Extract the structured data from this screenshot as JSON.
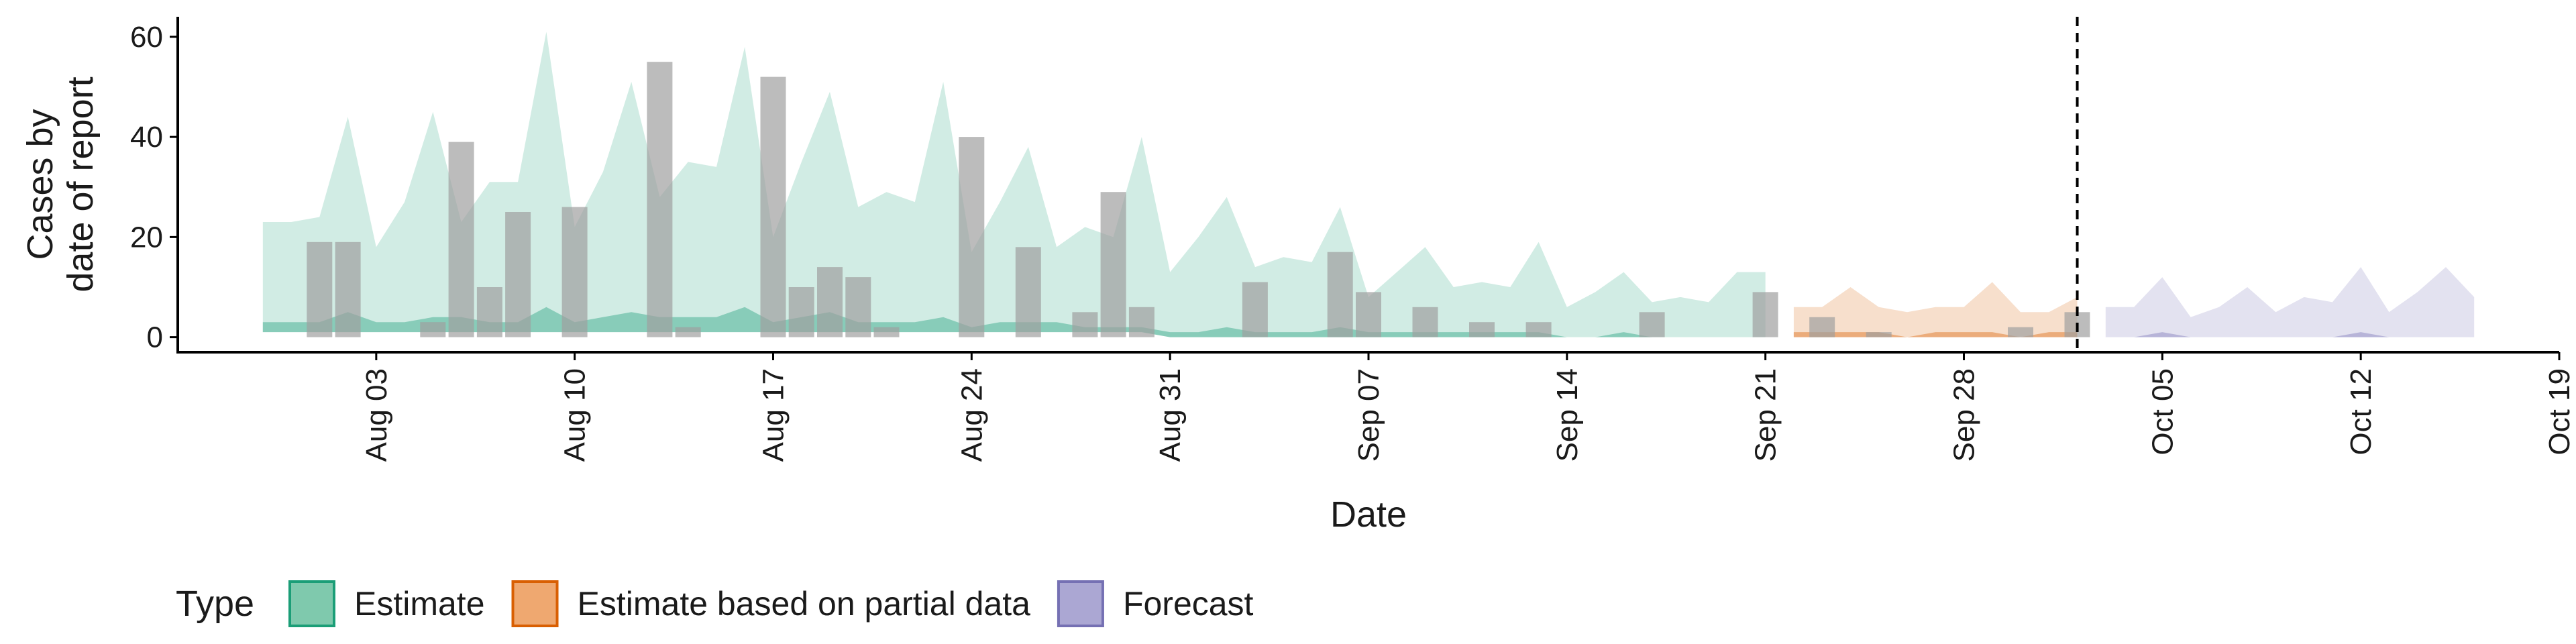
{
  "chart_data": {
    "type": "bar",
    "xlabel": "Date",
    "ylabel_lines": [
      "Cases by",
      "date of report"
    ],
    "yticks": [
      0,
      20,
      40,
      60
    ],
    "ylim": [
      -3,
      64
    ],
    "x_range": [
      "2024-07-27",
      "2024-10-19"
    ],
    "x_ticks": [
      {
        "date": "2024-08-03",
        "label": "Aug 03"
      },
      {
        "date": "2024-08-10",
        "label": "Aug 10"
      },
      {
        "date": "2024-08-17",
        "label": "Aug 17"
      },
      {
        "date": "2024-08-24",
        "label": "Aug 24"
      },
      {
        "date": "2024-08-31",
        "label": "Aug 31"
      },
      {
        "date": "2024-09-07",
        "label": "Sep 07"
      },
      {
        "date": "2024-09-14",
        "label": "Sep 14"
      },
      {
        "date": "2024-09-21",
        "label": "Sep 21"
      },
      {
        "date": "2024-09-28",
        "label": "Sep 28"
      },
      {
        "date": "2024-10-05",
        "label": "Oct 05"
      },
      {
        "date": "2024-10-12",
        "label": "Oct 12"
      },
      {
        "date": "2024-10-19",
        "label": "Oct 19"
      }
    ],
    "forecast_date": "2024-10-02",
    "legend": {
      "title": "Type",
      "entries": [
        {
          "label": "Estimate",
          "fill": "#7fc9ad",
          "stroke": "#1b9e77"
        },
        {
          "label": "Estimate based on partial data",
          "fill": "#efa870",
          "stroke": "#d95f02"
        },
        {
          "label": "Forecast",
          "fill": "#aba7d3",
          "stroke": "#7570b3"
        }
      ]
    },
    "colors": {
      "bar": "#a0a0a0",
      "estimate": "#1b9e77",
      "partial": "#d95f02",
      "forecast": "#7570b3"
    },
    "observed_bars": [
      {
        "date": "2024-08-01",
        "value": 19
      },
      {
        "date": "2024-08-02",
        "value": 19
      },
      {
        "date": "2024-08-05",
        "value": 3
      },
      {
        "date": "2024-08-06",
        "value": 39
      },
      {
        "date": "2024-08-07",
        "value": 10
      },
      {
        "date": "2024-08-08",
        "value": 25
      },
      {
        "date": "2024-08-10",
        "value": 26
      },
      {
        "date": "2024-08-13",
        "value": 55
      },
      {
        "date": "2024-08-14",
        "value": 2
      },
      {
        "date": "2024-08-17",
        "value": 52
      },
      {
        "date": "2024-08-18",
        "value": 10
      },
      {
        "date": "2024-08-19",
        "value": 14
      },
      {
        "date": "2024-08-20",
        "value": 12
      },
      {
        "date": "2024-08-21",
        "value": 2
      },
      {
        "date": "2024-08-24",
        "value": 40
      },
      {
        "date": "2024-08-26",
        "value": 18
      },
      {
        "date": "2024-08-28",
        "value": 5
      },
      {
        "date": "2024-08-29",
        "value": 29
      },
      {
        "date": "2024-08-30",
        "value": 6
      },
      {
        "date": "2024-09-03",
        "value": 11
      },
      {
        "date": "2024-09-06",
        "value": 17
      },
      {
        "date": "2024-09-07",
        "value": 9
      },
      {
        "date": "2024-09-09",
        "value": 6
      },
      {
        "date": "2024-09-11",
        "value": 3
      },
      {
        "date": "2024-09-13",
        "value": 3
      },
      {
        "date": "2024-09-17",
        "value": 5
      },
      {
        "date": "2024-09-21",
        "value": 9
      },
      {
        "date": "2024-09-23",
        "value": 4
      },
      {
        "date": "2024-09-25",
        "value": 1
      },
      {
        "date": "2024-09-30",
        "value": 2
      },
      {
        "date": "2024-10-02",
        "value": 5
      }
    ],
    "estimate_band": {
      "dates": [
        "2024-07-30",
        "2024-07-31",
        "2024-08-01",
        "2024-08-02",
        "2024-08-03",
        "2024-08-04",
        "2024-08-05",
        "2024-08-06",
        "2024-08-07",
        "2024-08-08",
        "2024-08-09",
        "2024-08-10",
        "2024-08-11",
        "2024-08-12",
        "2024-08-13",
        "2024-08-14",
        "2024-08-15",
        "2024-08-16",
        "2024-08-17",
        "2024-08-18",
        "2024-08-19",
        "2024-08-20",
        "2024-08-21",
        "2024-08-22",
        "2024-08-23",
        "2024-08-24",
        "2024-08-25",
        "2024-08-26",
        "2024-08-27",
        "2024-08-28",
        "2024-08-29",
        "2024-08-30",
        "2024-08-31",
        "2024-09-01",
        "2024-09-02",
        "2024-09-03",
        "2024-09-04",
        "2024-09-05",
        "2024-09-06",
        "2024-09-07",
        "2024-09-08",
        "2024-09-09",
        "2024-09-10",
        "2024-09-11",
        "2024-09-12",
        "2024-09-13",
        "2024-09-14",
        "2024-09-15",
        "2024-09-16",
        "2024-09-17",
        "2024-09-18",
        "2024-09-19",
        "2024-09-20",
        "2024-09-21"
      ],
      "upper": [
        23,
        23,
        24,
        44,
        18,
        27,
        45,
        23,
        31,
        31,
        61,
        22,
        33,
        51,
        28,
        35,
        34,
        58,
        20,
        35,
        49,
        26,
        29,
        27,
        51,
        17,
        27,
        38,
        18,
        22,
        20,
        40,
        13,
        20,
        28,
        14,
        16,
        15,
        26,
        8,
        13,
        18,
        10,
        11,
        10,
        19,
        6,
        9,
        13,
        7,
        8,
        7,
        13,
        13
      ],
      "lower": [
        1,
        1,
        1,
        1,
        1,
        1,
        1,
        1,
        1,
        1,
        1,
        1,
        1,
        1,
        1,
        1,
        1,
        1,
        1,
        1,
        1,
        1,
        1,
        1,
        1,
        1,
        1,
        1,
        1,
        1,
        1,
        1,
        0,
        0,
        0,
        0,
        0,
        0,
        0,
        0,
        0,
        0,
        0,
        0,
        0,
        0,
        0,
        0,
        0,
        0,
        0,
        0,
        0,
        0
      ],
      "inner_upper": [
        3,
        3,
        3,
        5,
        3,
        3,
        4,
        4,
        3,
        3,
        6,
        3,
        4,
        5,
        4,
        4,
        4,
        6,
        3,
        4,
        5,
        3,
        3,
        3,
        4,
        2,
        3,
        3,
        3,
        2,
        2,
        2,
        1,
        1,
        2,
        1,
        1,
        1,
        2,
        1,
        1,
        1,
        1,
        1,
        1,
        1,
        0,
        0,
        1,
        0,
        0,
        0,
        0,
        0
      ],
      "inner_lower": [
        1,
        1,
        1,
        1,
        1,
        1,
        1,
        1,
        1,
        1,
        1,
        1,
        1,
        1,
        1,
        1,
        1,
        1,
        1,
        1,
        1,
        1,
        1,
        1,
        1,
        1,
        1,
        1,
        1,
        1,
        1,
        1,
        0,
        0,
        0,
        0,
        0,
        0,
        0,
        0,
        0,
        0,
        0,
        0,
        0,
        0,
        0,
        0,
        0,
        0,
        0,
        0,
        0,
        0
      ]
    },
    "partial_band": {
      "dates": [
        "2024-09-22",
        "2024-09-23",
        "2024-09-24",
        "2024-09-25",
        "2024-09-26",
        "2024-09-27",
        "2024-09-28",
        "2024-09-29",
        "2024-09-30",
        "2024-10-01",
        "2024-10-02"
      ],
      "upper": [
        6,
        6,
        10,
        6,
        5,
        6,
        6,
        11,
        5,
        5,
        8
      ],
      "lower": [
        0,
        0,
        0,
        0,
        0,
        0,
        0,
        0,
        0,
        0,
        0
      ],
      "inner_upper": [
        1,
        1,
        1,
        1,
        0,
        1,
        1,
        1,
        0,
        1,
        1
      ],
      "inner_lower": [
        0,
        0,
        0,
        0,
        0,
        0,
        0,
        0,
        0,
        0,
        0
      ]
    },
    "forecast_band": {
      "dates": [
        "2024-10-03",
        "2024-10-04",
        "2024-10-05",
        "2024-10-06",
        "2024-10-07",
        "2024-10-08",
        "2024-10-09",
        "2024-10-10",
        "2024-10-11",
        "2024-10-12",
        "2024-10-13",
        "2024-10-14",
        "2024-10-15",
        "2024-10-16"
      ],
      "upper": [
        6,
        6,
        12,
        4,
        6,
        10,
        5,
        8,
        7,
        14,
        5,
        9,
        14,
        8
      ],
      "lower": [
        0,
        0,
        0,
        0,
        0,
        0,
        0,
        0,
        0,
        0,
        0,
        0,
        0,
        0
      ],
      "inner_upper": [
        0,
        0,
        1,
        0,
        0,
        0,
        0,
        0,
        0,
        1,
        0,
        0,
        0,
        0
      ],
      "inner_lower": [
        0,
        0,
        0,
        0,
        0,
        0,
        0,
        0,
        0,
        0,
        0,
        0,
        0,
        0
      ]
    }
  }
}
